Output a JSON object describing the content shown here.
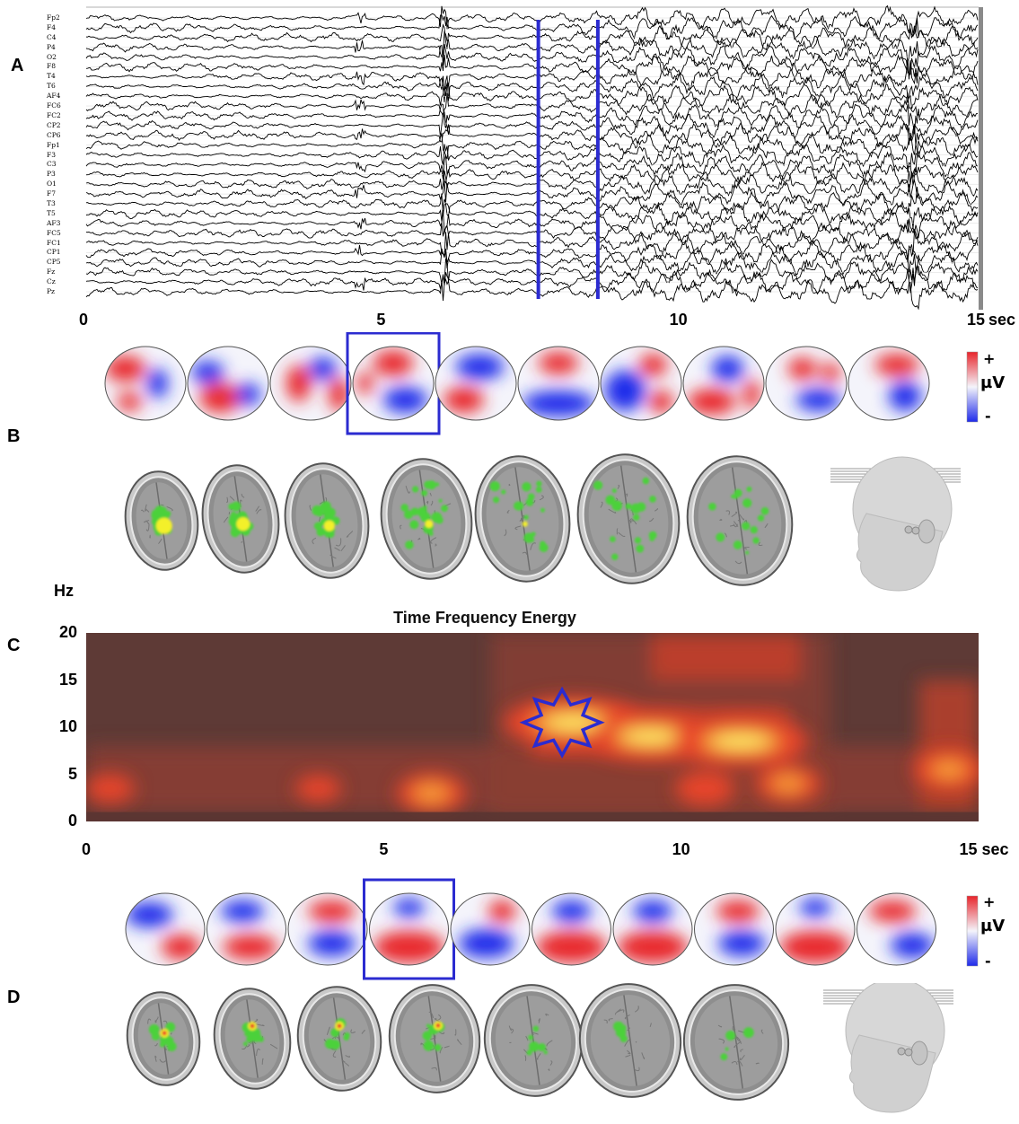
{
  "panels": [
    "A",
    "B",
    "C",
    "D"
  ],
  "eeg": {
    "channels": [
      "Fp2",
      "F4",
      "C4",
      "P4",
      "O2",
      "F8",
      "T4",
      "T6",
      "AF4",
      "FC6",
      "FC2",
      "CP2",
      "CP6",
      "Fp1",
      "F3",
      "C3",
      "P3",
      "O1",
      "F7",
      "T3",
      "T5",
      "AF3",
      "FC5",
      "FC1",
      "CP1",
      "CP5",
      "Fz",
      "Cz",
      "Pz"
    ],
    "ticks": [
      "0",
      "5",
      "10",
      "15"
    ],
    "tick_values": [
      0,
      5,
      10,
      15
    ],
    "unit": "sec",
    "markers_sec": [
      7.6,
      8.6
    ],
    "xlim": [
      0,
      15
    ]
  },
  "colorbar": {
    "plus": "+",
    "unit": "µV",
    "minus": "-"
  },
  "topomaps_B": {
    "count": 10,
    "highlight_index": 3
  },
  "topomaps_D": {
    "count": 10,
    "highlight_index": 3
  },
  "brain_slices_B": {
    "count": 7,
    "activation": "green-yellow"
  },
  "brain_slices_D": {
    "count": 7,
    "activation": "red-green"
  },
  "chart_data": {
    "type": "heatmap",
    "title": "Time Frequency Energy",
    "ylabel": "Hz",
    "xlabel": "sec",
    "x_ticks": [
      "0",
      "5",
      "10",
      "15 sec"
    ],
    "x_tick_values": [
      0,
      5,
      10,
      15
    ],
    "y_ticks": [
      "0",
      "5",
      "10",
      "15",
      "20"
    ],
    "y_tick_values": [
      0,
      5,
      10,
      15,
      20
    ],
    "xlim": [
      0,
      15
    ],
    "ylim": [
      0,
      20
    ],
    "marker": {
      "shape": "star",
      "x": 8.0,
      "y": 10.5
    },
    "hotspots": [
      {
        "x": 0.4,
        "y": 3.5,
        "intensity": 0.45
      },
      {
        "x": 3.9,
        "y": 3.5,
        "intensity": 0.4
      },
      {
        "x": 5.8,
        "y": 3.0,
        "intensity": 0.75
      },
      {
        "x": 8.2,
        "y": 10.5,
        "intensity": 1.0
      },
      {
        "x": 9.5,
        "y": 9.0,
        "intensity": 0.9
      },
      {
        "x": 11.0,
        "y": 8.5,
        "intensity": 0.95
      },
      {
        "x": 10.4,
        "y": 3.5,
        "intensity": 0.6
      },
      {
        "x": 11.8,
        "y": 4.0,
        "intensity": 0.7
      },
      {
        "x": 14.5,
        "y": 5.5,
        "intensity": 0.75
      }
    ]
  },
  "colors": {
    "marker": "#2b2bd0",
    "heat_bg": "#5e3a36",
    "positive": "#e8252b",
    "negative": "#1f2bea"
  }
}
